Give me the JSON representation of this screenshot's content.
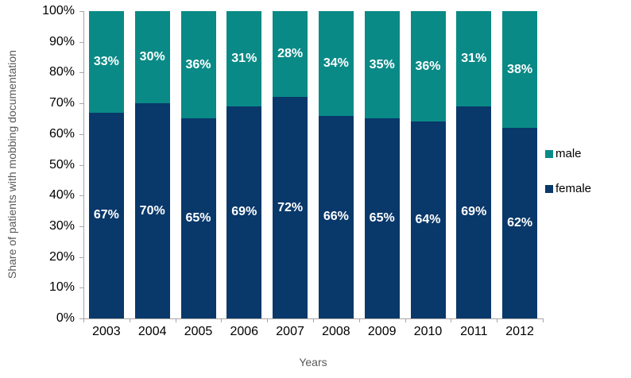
{
  "chart_data": {
    "type": "bar",
    "stacked": true,
    "percent_stacked": true,
    "categories": [
      "2003",
      "2004",
      "2005",
      "2006",
      "2007",
      "2008",
      "2009",
      "2010",
      "2011",
      "2012"
    ],
    "series": [
      {
        "name": "female",
        "color": "#09386A",
        "values": [
          67,
          70,
          65,
          69,
          72,
          66,
          65,
          64,
          69,
          62
        ]
      },
      {
        "name": "male",
        "color": "#0A8A87",
        "values": [
          33,
          30,
          36,
          31,
          28,
          34,
          35,
          36,
          31,
          38
        ]
      }
    ],
    "data_label_suffix": "%",
    "xlabel": "Years",
    "ylabel": "Share of patients with mobbing documentation",
    "ylim": [
      0,
      100
    ],
    "ytick_step": 10,
    "ytick_labels": [
      "0%",
      "10%",
      "20%",
      "30%",
      "40%",
      "50%",
      "60%",
      "70%",
      "80%",
      "90%",
      "100%"
    ],
    "grid": false,
    "legend_position": "right",
    "legend_order": [
      "male",
      "female"
    ],
    "axis_color": "#A6A6A6",
    "tick_label_color": "#000000",
    "axis_title_color": "#595959",
    "data_label_color": "#FFFFFF",
    "background_color": "#FFFFFF"
  }
}
